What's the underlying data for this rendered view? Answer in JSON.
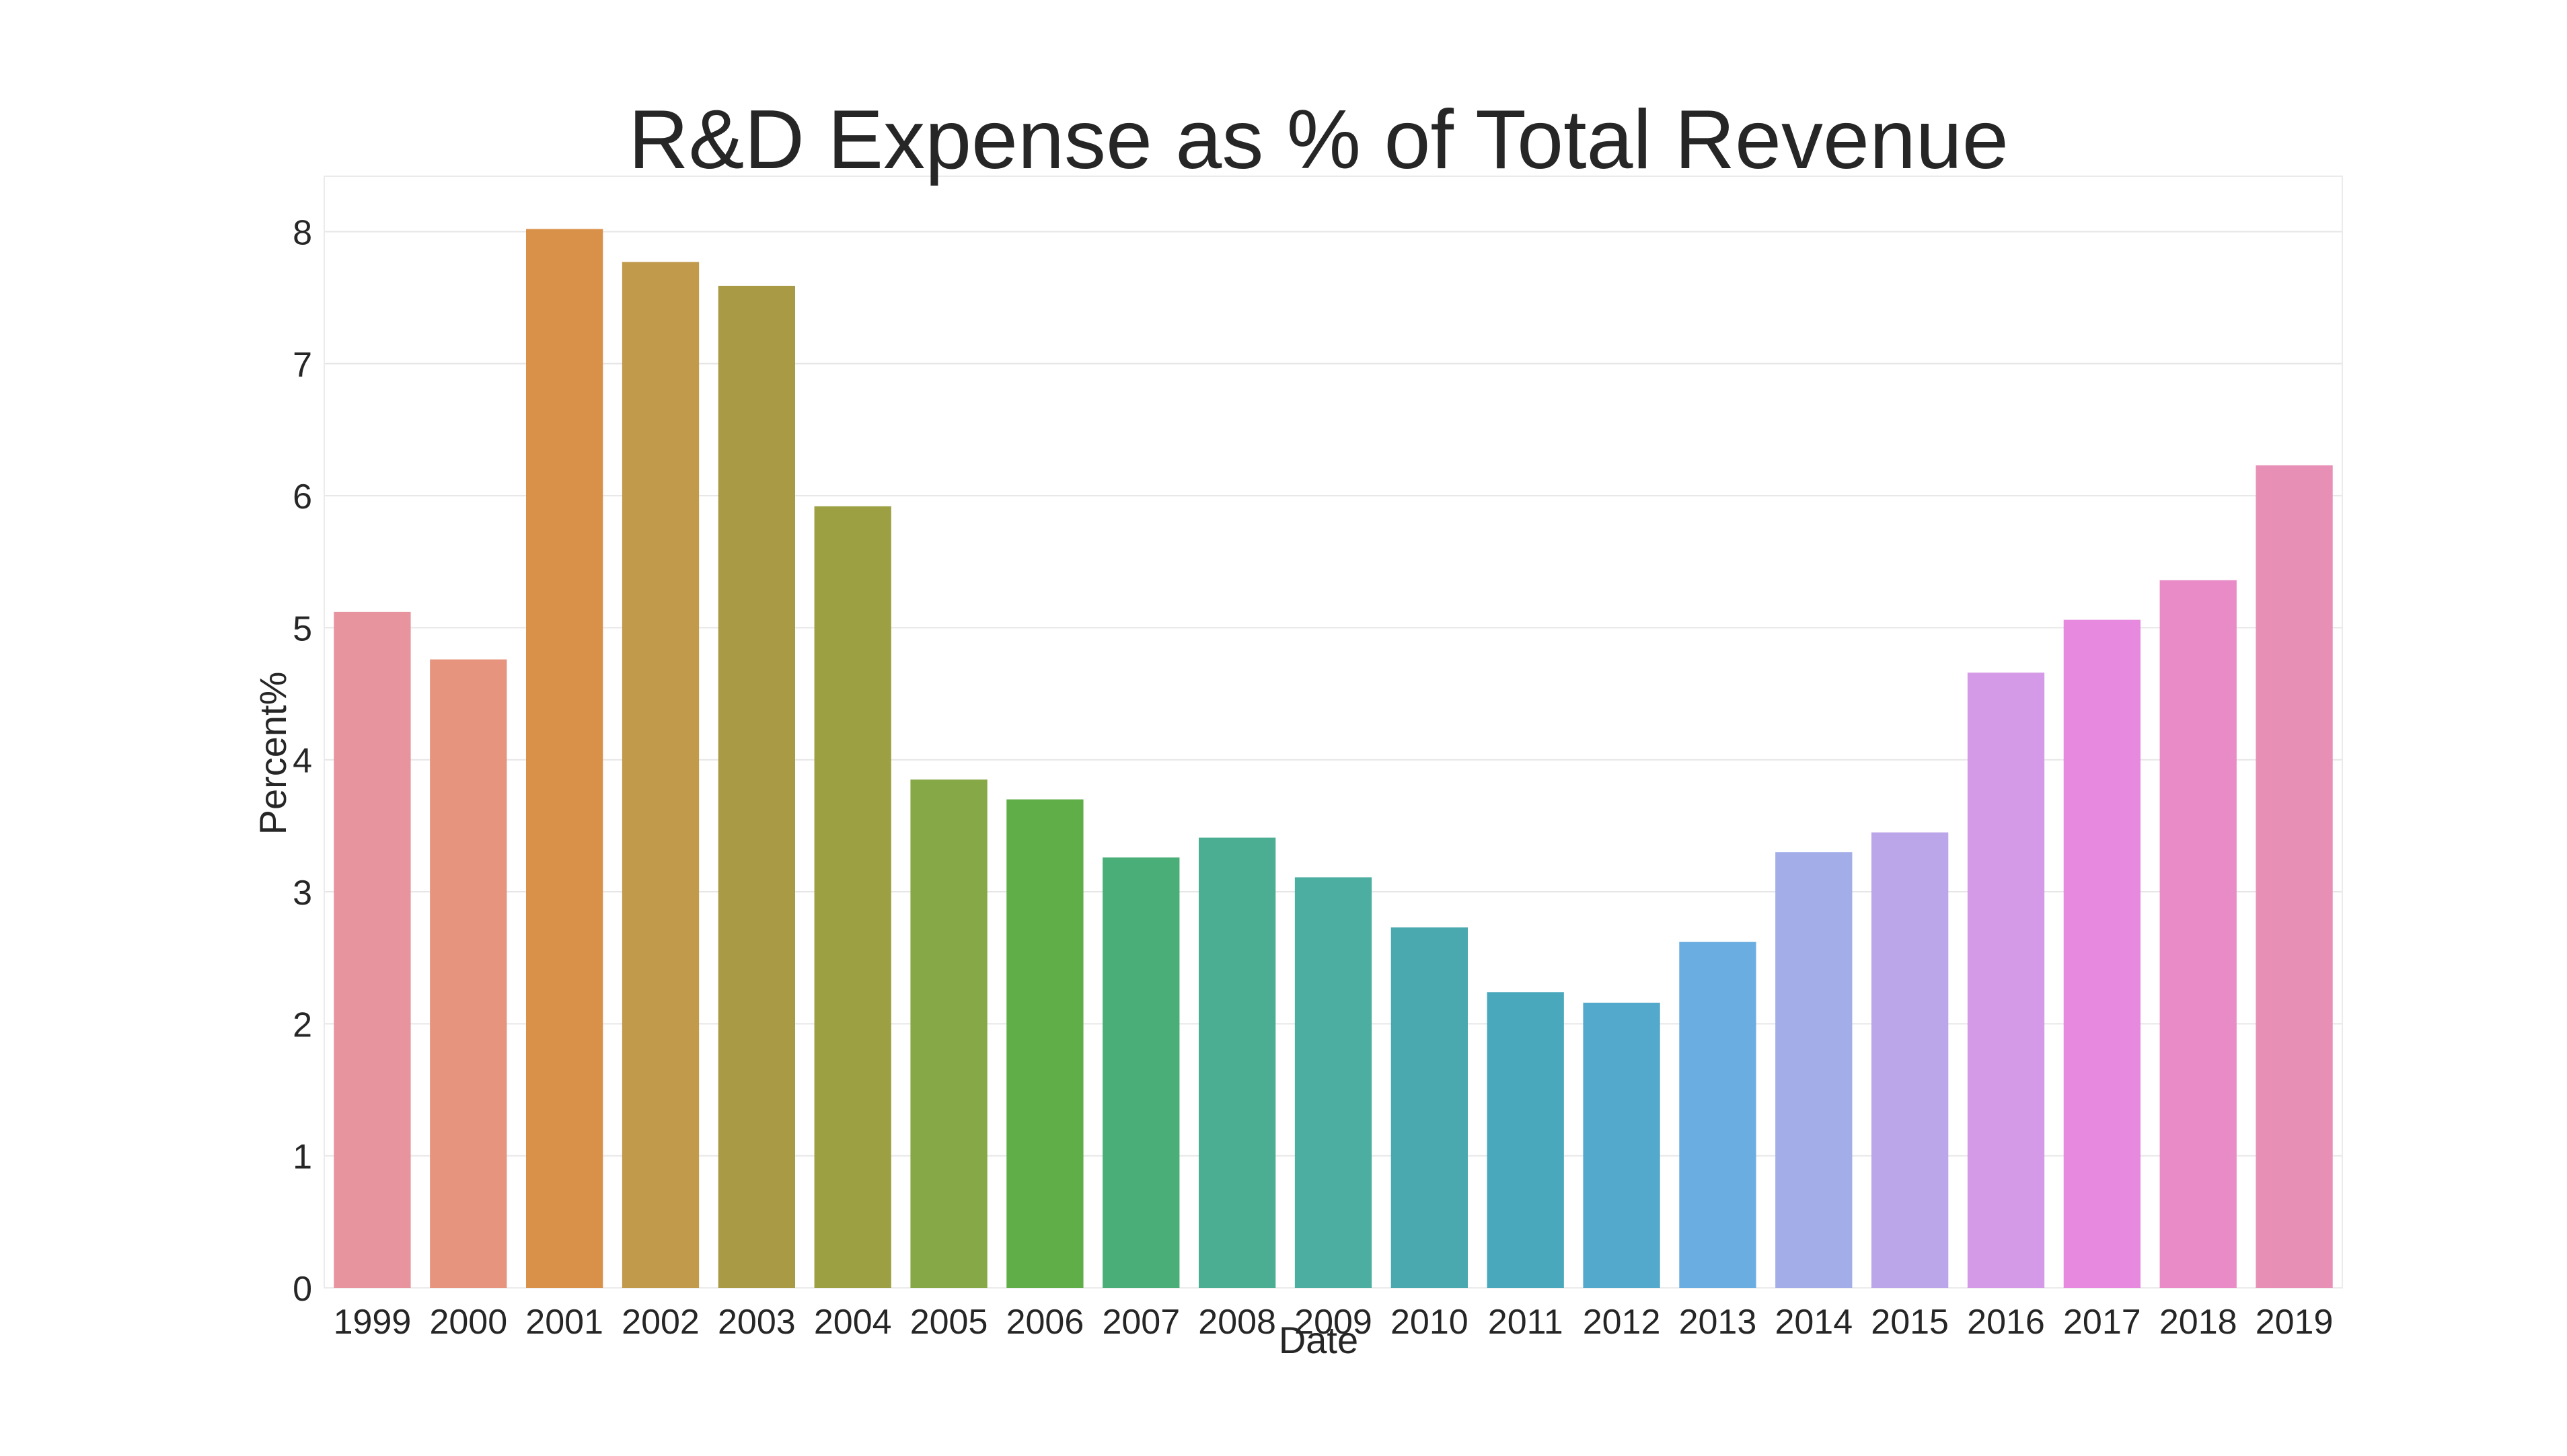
{
  "chart_data": {
    "type": "bar",
    "title": "R&D Expense as % of Total Revenue",
    "xlabel": "Date",
    "ylabel": "Percent%",
    "categories": [
      "1999",
      "2000",
      "2001",
      "2002",
      "2003",
      "2004",
      "2005",
      "2006",
      "2007",
      "2008",
      "2009",
      "2010",
      "2011",
      "2012",
      "2013",
      "2014",
      "2015",
      "2016",
      "2017",
      "2018",
      "2019"
    ],
    "values": [
      5.12,
      4.76,
      8.02,
      7.77,
      7.59,
      5.92,
      3.85,
      3.7,
      3.26,
      3.41,
      3.11,
      2.73,
      2.24,
      2.16,
      2.62,
      3.3,
      3.45,
      4.66,
      5.06,
      5.36,
      6.23
    ],
    "colors": [
      "#e8949f",
      "#e7947f",
      "#d99048",
      "#c19a4b",
      "#a99b45",
      "#9ca043",
      "#86a846",
      "#5fae48",
      "#4aae78",
      "#4bae92",
      "#4cada1",
      "#4aa9ae",
      "#4aa8bd",
      "#53a9cc",
      "#6aaee1",
      "#a3aee9",
      "#bca6ea",
      "#d59ae7",
      "#e789df",
      "#e98bc6",
      "#e88fb6"
    ],
    "yticks": [
      "0",
      "1",
      "2",
      "3",
      "4",
      "5",
      "6",
      "7",
      "8"
    ],
    "ylim": [
      0,
      8.42
    ],
    "grid": true,
    "legend": "none"
  }
}
